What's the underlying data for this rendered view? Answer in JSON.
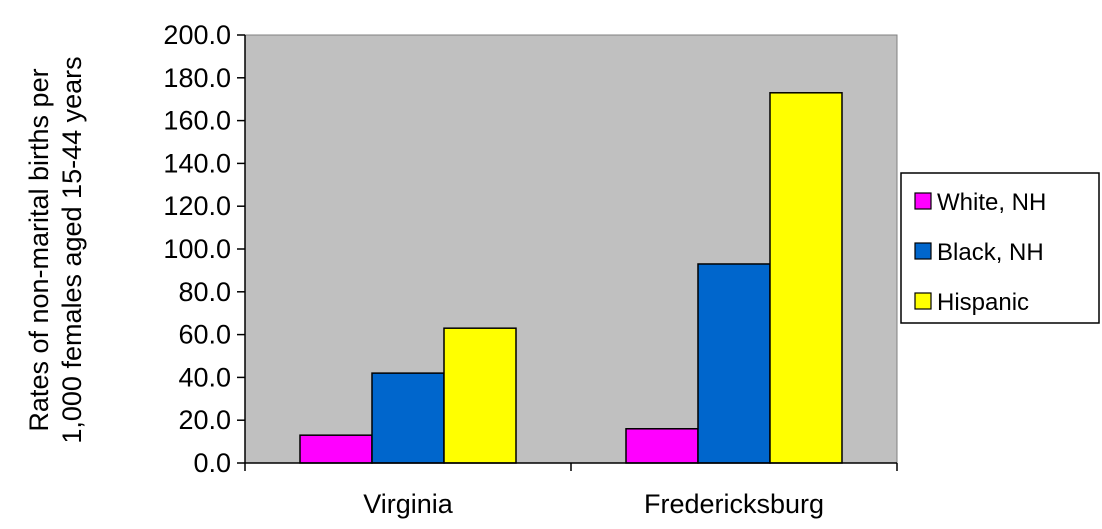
{
  "chart_data": {
    "type": "bar",
    "title": "",
    "xlabel": "",
    "ylabel_lines": [
      "Rates of non-marital births per",
      "1,000 females aged 15-44 years"
    ],
    "categories": [
      "Virginia",
      "Fredericksburg"
    ],
    "series": [
      {
        "name": "White, NH",
        "color": "#ff00ff",
        "values": [
          13.0,
          16.0
        ]
      },
      {
        "name": "Black, NH",
        "color": "#0066cc",
        "values": [
          42.0,
          93.0
        ]
      },
      {
        "name": "Hispanic",
        "color": "#ffff00",
        "values": [
          63.0,
          173.0
        ]
      }
    ],
    "ylim": [
      0,
      200
    ],
    "yticks": [
      "0.0",
      "20.0",
      "40.0",
      "60.0",
      "80.0",
      "100.0",
      "120.0",
      "140.0",
      "160.0",
      "180.0",
      "200.0"
    ],
    "plot_background": "#c0c0c0",
    "gridlines": false,
    "legend_position": "right"
  }
}
